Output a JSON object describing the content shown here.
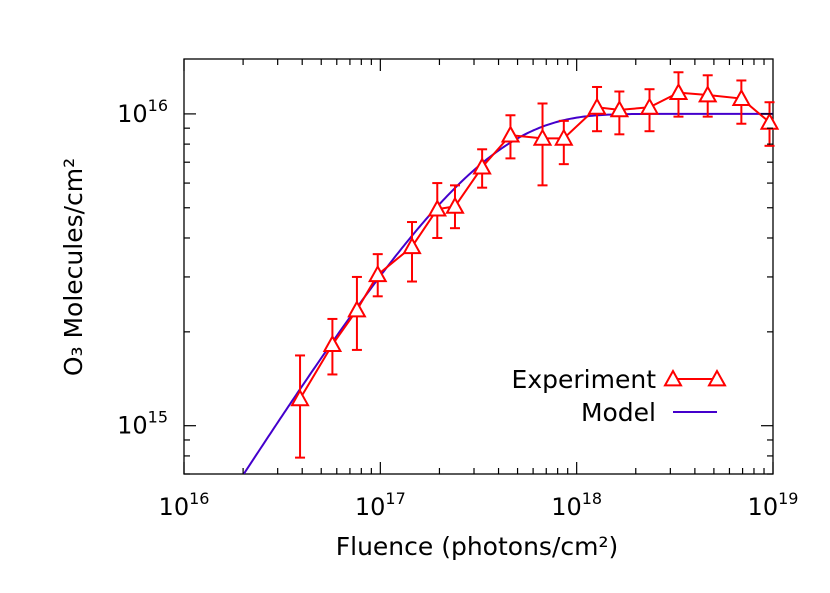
{
  "chart_data": {
    "type": "line",
    "xlabel": "Fluence (photons/cm²)",
    "ylabel": "O₃ Molecules/cm²",
    "x_scale": "log",
    "y_scale": "log",
    "xlim": [
      1e+16,
      1e+19
    ],
    "ylim": [
      700000000000000.0,
      1.5e+16
    ],
    "x_ticks": [
      {
        "value": 1e+16,
        "base": "10",
        "exp": "16"
      },
      {
        "value": 1e+17,
        "base": "10",
        "exp": "17"
      },
      {
        "value": 1e+18,
        "base": "10",
        "exp": "18"
      },
      {
        "value": 1e+19,
        "base": "10",
        "exp": "19"
      }
    ],
    "y_ticks": [
      {
        "value": 1000000000000000.0,
        "base": "10",
        "exp": "15"
      },
      {
        "value": 1e+16,
        "base": "10",
        "exp": "16"
      }
    ],
    "grid": false,
    "legend_position": "bottom-right",
    "series": [
      {
        "name": "Experiment",
        "color": "#ff0000",
        "marker": "triangle",
        "points": [
          {
            "x": 3.9e+16,
            "y": 1220000000000000.0,
            "ylo": 790000000000000.0,
            "yhi": 1680000000000000.0
          },
          {
            "x": 5.7e+16,
            "y": 1820000000000000.0,
            "ylo": 1460000000000000.0,
            "yhi": 2200000000000000.0
          },
          {
            "x": 7.6e+16,
            "y": 2350000000000000.0,
            "ylo": 1750000000000000.0,
            "yhi": 3000000000000000.0
          },
          {
            "x": 9.7e+16,
            "y": 3050000000000000.0,
            "ylo": 2600000000000000.0,
            "yhi": 3550000000000000.0
          },
          {
            "x": 1.45e+17,
            "y": 3750000000000000.0,
            "ylo": 2900000000000000.0,
            "yhi": 4500000000000000.0
          },
          {
            "x": 1.95e+17,
            "y": 4950000000000000.0,
            "ylo": 4000000000000000.0,
            "yhi": 6000000000000000.0
          },
          {
            "x": 2.4e+17,
            "y": 5050000000000000.0,
            "ylo": 4300000000000000.0,
            "yhi": 5900000000000000.0
          },
          {
            "x": 3.3e+17,
            "y": 6750000000000000.0,
            "ylo": 5800000000000000.0,
            "yhi": 7700000000000000.0
          },
          {
            "x": 4.6e+17,
            "y": 8550000000000000.0,
            "ylo": 7200000000000000.0,
            "yhi": 9900000000000000.0
          },
          {
            "x": 6.7e+17,
            "y": 8350000000000000.0,
            "ylo": 5900000000000000.0,
            "yhi": 1.08e+16
          },
          {
            "x": 8.6e+17,
            "y": 8350000000000000.0,
            "ylo": 6900000000000000.0,
            "yhi": 9500000000000000.0
          },
          {
            "x": 1.27e+18,
            "y": 1.05e+16,
            "ylo": 8800000000000000.0,
            "yhi": 1.22e+16
          },
          {
            "x": 1.65e+18,
            "y": 1.03e+16,
            "ylo": 8600000000000000.0,
            "yhi": 1.18e+16
          },
          {
            "x": 2.35e+18,
            "y": 1.05e+16,
            "ylo": 8800000000000000.0,
            "yhi": 1.2e+16
          },
          {
            "x": 3.3e+18,
            "y": 1.17e+16,
            "ylo": 9800000000000000.0,
            "yhi": 1.36e+16
          },
          {
            "x": 4.65e+18,
            "y": 1.15e+16,
            "ylo": 9800000000000000.0,
            "yhi": 1.33e+16
          },
          {
            "x": 6.9e+18,
            "y": 1.12e+16,
            "ylo": 9300000000000000.0,
            "yhi": 1.28e+16
          },
          {
            "x": 9.6e+18,
            "y": 9400000000000000.0,
            "ylo": 7900000000000000.0,
            "yhi": 1.09e+16
          }
        ]
      },
      {
        "name": "Model",
        "color": "#4400cc",
        "model": {
          "type": "saturation",
          "ymax": 1e+16,
          "sigma": 3.6e-18
        }
      }
    ]
  }
}
